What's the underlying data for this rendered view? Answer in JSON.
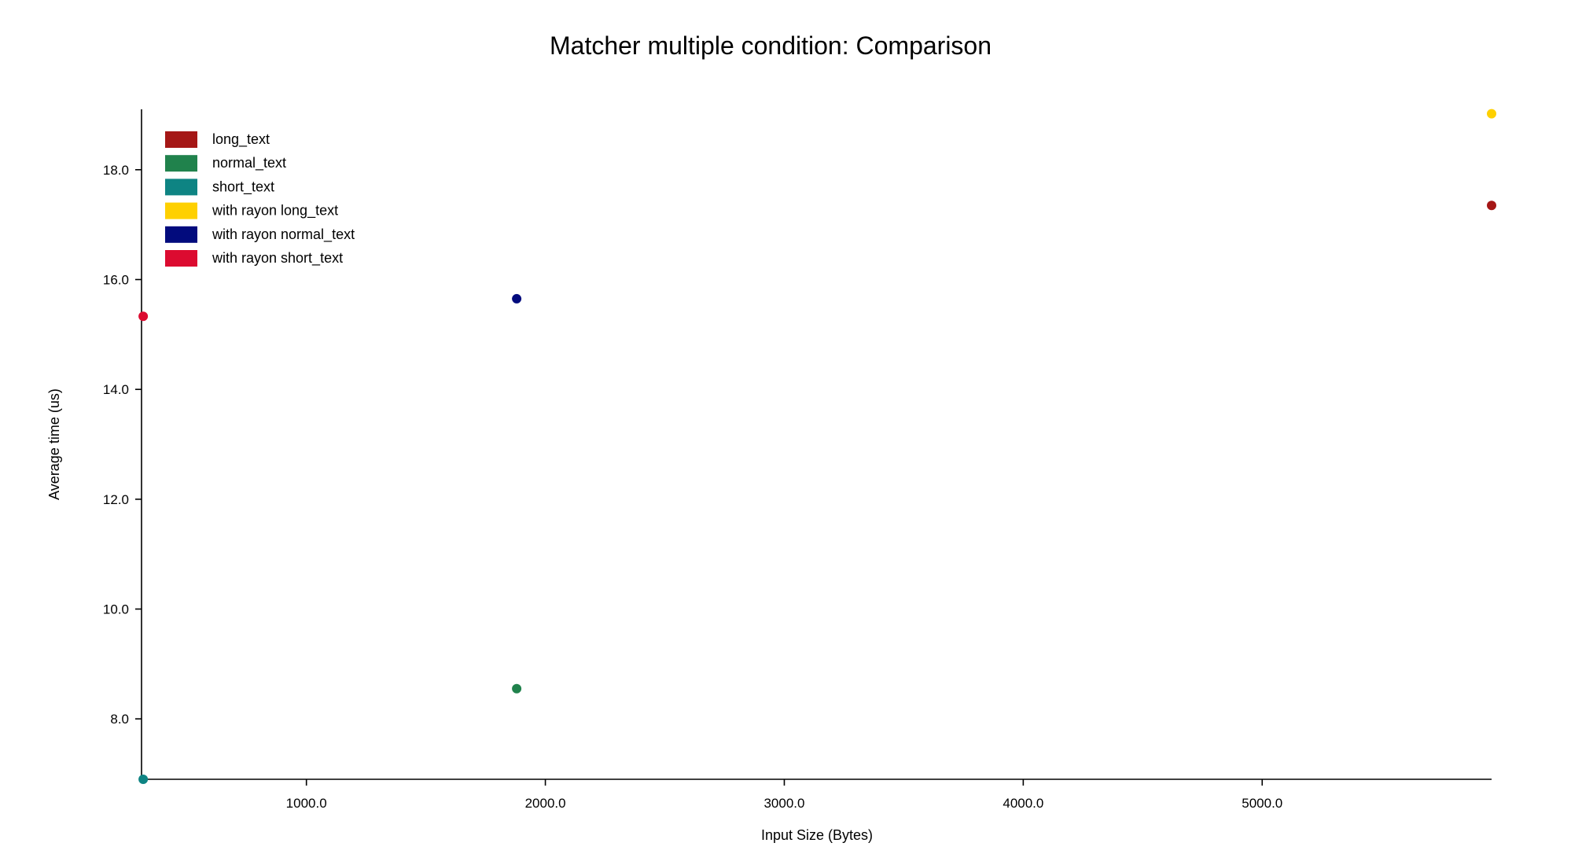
{
  "chart_data": {
    "type": "scatter",
    "title": "Matcher multiple condition: Comparison",
    "xlabel": "Input Size (Bytes)",
    "ylabel": "Average time (us)",
    "xlim": [
      310,
      5960
    ],
    "ylim": [
      6.9,
      19.1
    ],
    "xticks": [
      {
        "value": 1000,
        "label": "1000.0"
      },
      {
        "value": 2000,
        "label": "2000.0"
      },
      {
        "value": 3000,
        "label": "3000.0"
      },
      {
        "value": 4000,
        "label": "4000.0"
      },
      {
        "value": 5000,
        "label": "5000.0"
      }
    ],
    "yticks": [
      {
        "value": 8,
        "label": "8.0"
      },
      {
        "value": 10,
        "label": "10.0"
      },
      {
        "value": 12,
        "label": "12.0"
      },
      {
        "value": 14,
        "label": "14.0"
      },
      {
        "value": 16,
        "label": "16.0"
      },
      {
        "value": 18,
        "label": "18.0"
      }
    ],
    "legend_position": "top-left",
    "grid": false,
    "series": [
      {
        "name": "long_text",
        "color": "#a51716",
        "points": [
          {
            "x": 5960,
            "y": 17.35
          }
        ]
      },
      {
        "name": "normal_text",
        "color": "#20824c",
        "points": [
          {
            "x": 1880,
            "y": 8.55
          }
        ]
      },
      {
        "name": "short_text",
        "color": "#0e8483",
        "points": [
          {
            "x": 317,
            "y": 6.9
          }
        ]
      },
      {
        "name": "with rayon long_text",
        "color": "#fed000",
        "points": [
          {
            "x": 5960,
            "y": 19.02
          }
        ]
      },
      {
        "name": "with rayon normal_text",
        "color": "#020b7d",
        "points": [
          {
            "x": 1880,
            "y": 15.65
          }
        ]
      },
      {
        "name": "with rayon short_text",
        "color": "#dc0b30",
        "points": [
          {
            "x": 317,
            "y": 15.33
          }
        ]
      }
    ]
  }
}
